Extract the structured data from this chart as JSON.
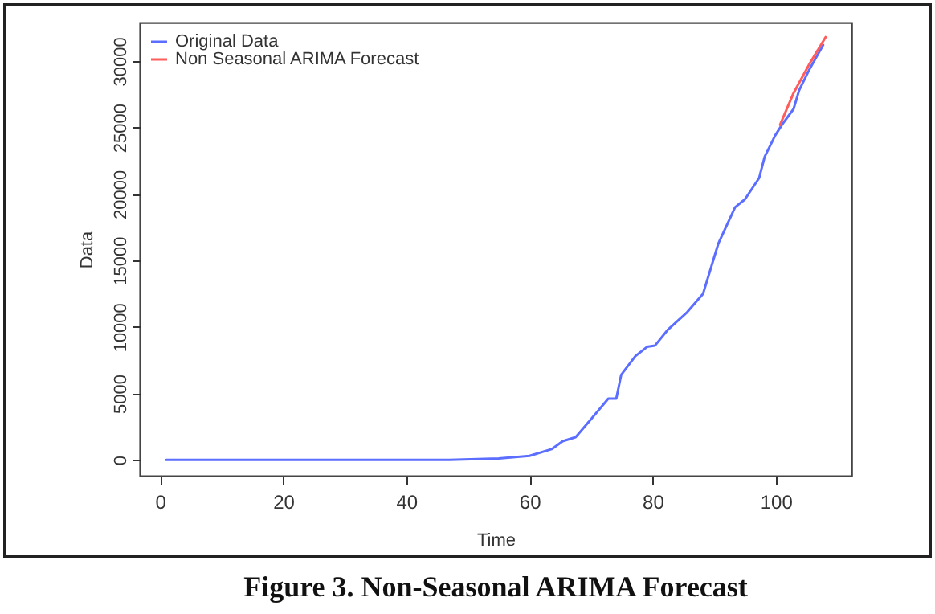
{
  "chart_data": {
    "type": "line",
    "xlabel": "Time",
    "ylabel": "Data",
    "xlim": [
      -3.3,
      112.3
    ],
    "ylim": [
      -1200,
      32900
    ],
    "xticks": [
      0,
      20,
      40,
      60,
      80,
      100
    ],
    "yticks": [
      0,
      5000,
      10000,
      15000,
      20000,
      25000,
      30000
    ],
    "grid": false,
    "legend": "top left",
    "annotations": [
      "Figure 3. Non-Seasonal ARIMA Forecast"
    ],
    "series": [
      {
        "name": "Original Data",
        "color": "#5b6eff",
        "x": [
          1,
          47,
          55,
          60,
          63.6,
          65.4,
          67.5,
          69.9,
          72.8,
          74.1,
          74.9,
          77.2,
          79.1,
          80.4,
          82.5,
          85.6,
          88.2,
          90.7,
          93.4,
          95,
          97.3,
          98.2,
          99.9,
          101,
          102.9,
          103.8,
          105.5,
          107.7
        ],
        "values": [
          0,
          0,
          100,
          300,
          800,
          1400,
          1700,
          3000,
          4600,
          4600,
          6400,
          7800,
          8500,
          8600,
          9800,
          11100,
          12500,
          16300,
          19000,
          19600,
          21200,
          22800,
          24400,
          25200,
          26400,
          27800,
          29400,
          31200
        ]
      },
      {
        "name": "Non Seasonal ARIMA Forecast",
        "color": "#ff5c5c",
        "x": [
          100.7,
          102.9,
          105.5,
          108.1
        ],
        "values": [
          25200,
          27600,
          29800,
          31800
        ]
      }
    ]
  }
}
